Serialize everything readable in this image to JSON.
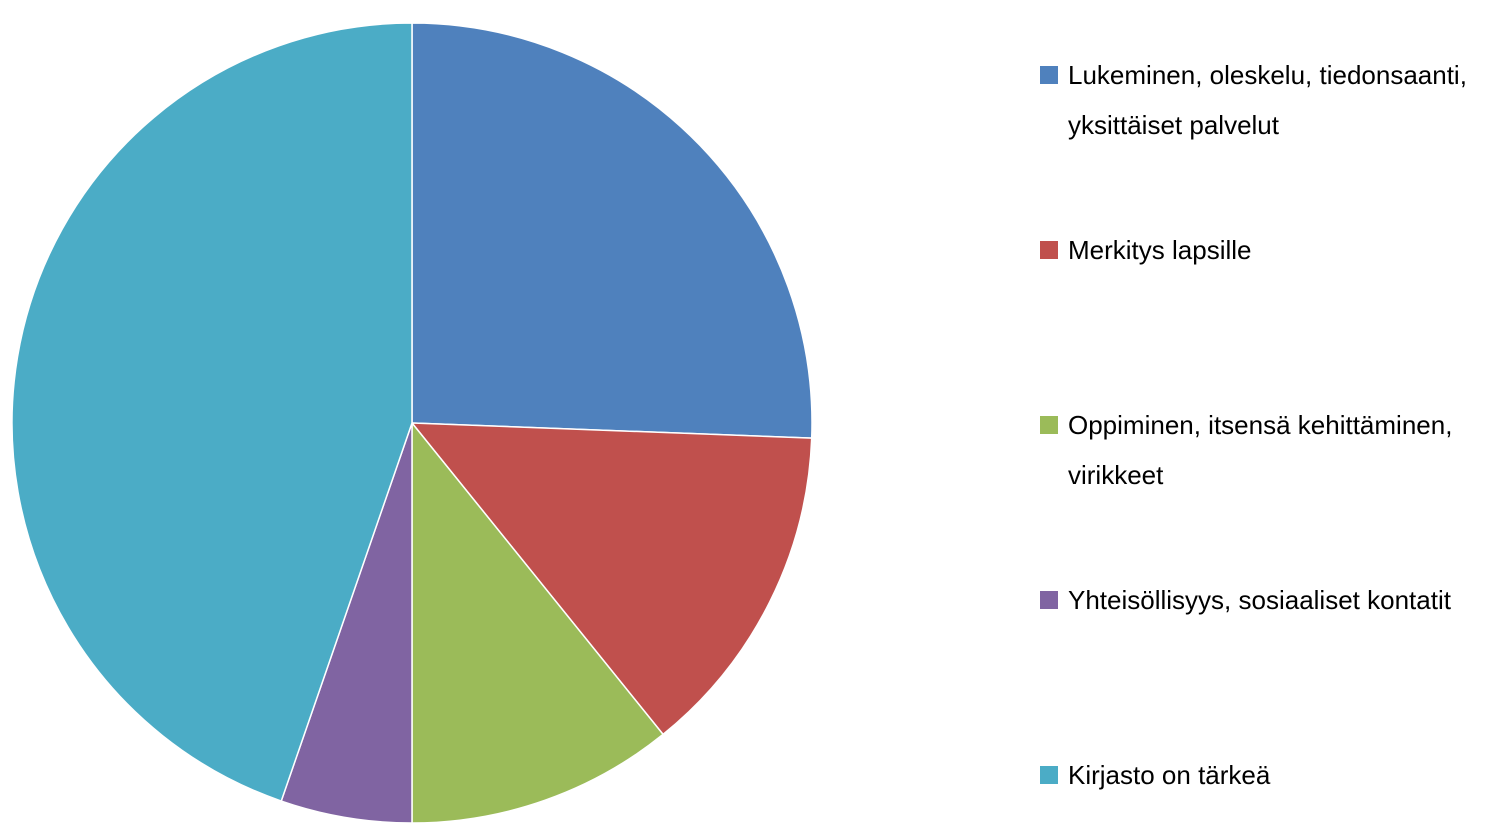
{
  "chart_data": {
    "type": "pie",
    "categories": [
      "Lukeminen, oleskelu, tiedonsaanti, yksittäiset palvelut",
      "Merkitys lapsille",
      "Oppiminen, itsensä kehittäminen, virikkeet",
      "Yhteisöllisyys, sosiaaliset kontatit",
      "Kirjasto on tärkeä"
    ],
    "values": [
      25.6,
      13.6,
      10.8,
      5.3,
      44.7
    ],
    "colors": [
      "#4f81bd",
      "#c0504d",
      "#9bbb59",
      "#8064a2",
      "#4bacc6"
    ],
    "legend": "right"
  }
}
